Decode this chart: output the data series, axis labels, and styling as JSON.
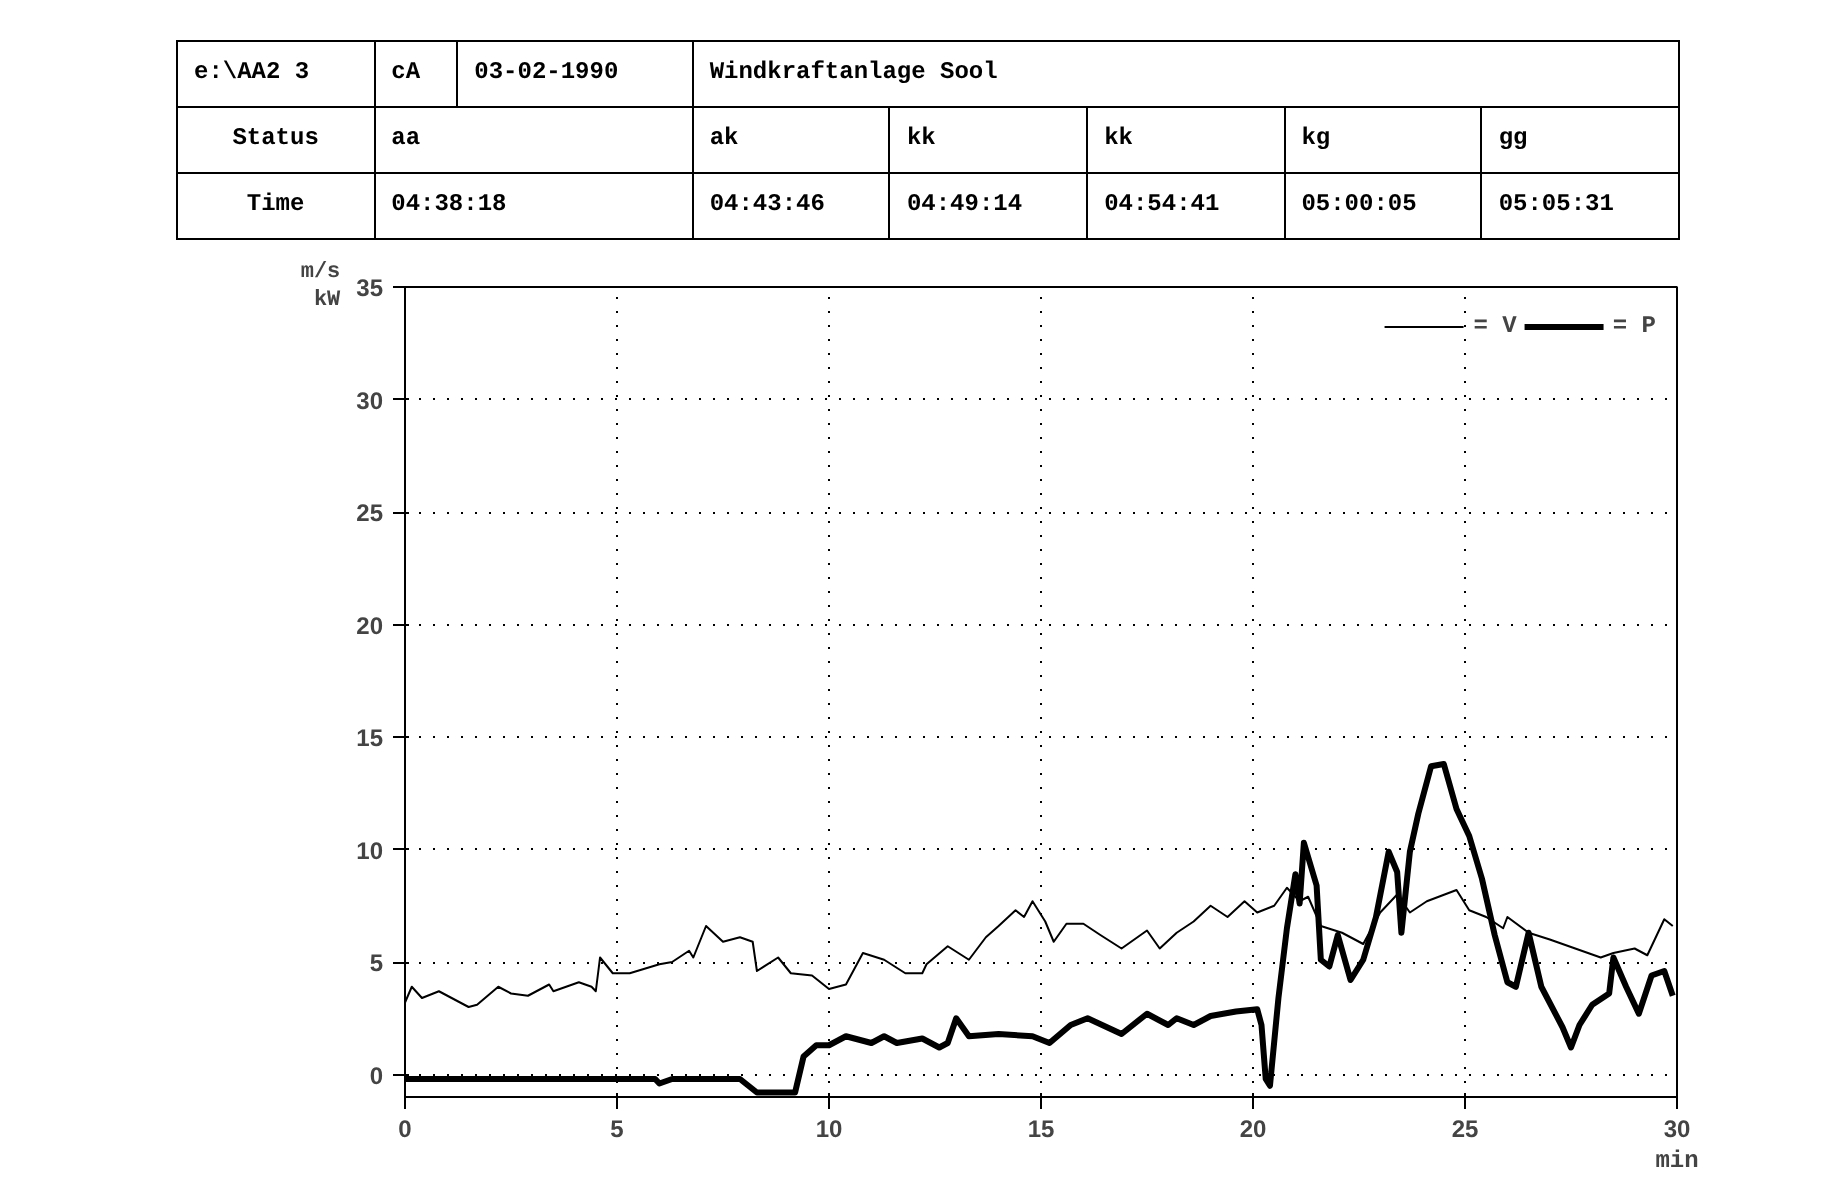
{
  "chart_data": {
    "type": "line",
    "title": "Windkraftanlage Sool",
    "xlabel": "min",
    "ylabel": "m/s\nkW",
    "annotations": [
      "e:\\AA2 3",
      "cA",
      "03-02-1990",
      "Status",
      "aa",
      "ak",
      "kk",
      "kk",
      "kg",
      "gg",
      "Time",
      "04:38:18",
      "04:43:46",
      "04:49:14",
      "04:54:41",
      "05:00:05",
      "05:05:31"
    ],
    "xlim": [
      0,
      30
    ],
    "ylim": [
      -1,
      35
    ],
    "xticks": [
      0,
      5,
      10,
      15,
      20,
      25,
      30
    ],
    "yticks": [
      0,
      5,
      10,
      15,
      20,
      25,
      30,
      35
    ],
    "grid": true,
    "legend": "top right",
    "line_style": "solid",
    "marker": "none",
    "series": [
      {
        "name": "= V",
        "color": "#000000",
        "x": [
          0,
          0.16,
          0.4,
          0.8,
          1.5,
          1.7,
          2.2,
          2.5,
          2.9,
          3.4,
          3.5,
          4.1,
          4.4,
          4.5,
          4.6,
          4.9,
          5.3,
          6.0,
          6.3,
          6.7,
          6.8,
          7.1,
          7.5,
          7.9,
          8.2,
          8.3,
          8.8,
          9.1,
          9.6,
          10.0,
          10.4,
          10.8,
          11.3,
          11.8,
          12.2,
          12.3,
          12.8,
          13.3,
          13.7,
          14.0,
          14.4,
          14.6,
          14.8,
          15.1,
          15.3,
          15.6,
          16.0,
          16.4,
          16.9,
          17.5,
          17.8,
          18.2,
          18.6,
          19.0,
          19.4,
          19.8,
          20.1,
          20.5,
          20.8,
          21.1,
          21.3,
          21.6,
          22.1,
          22.6,
          23.0,
          23.4,
          23.7,
          24.1,
          24.8,
          25.1,
          25.5,
          25.9,
          26.0,
          26.5,
          27.0,
          27.6,
          28.2,
          28.5,
          29.0,
          29.3,
          29.7,
          29.9
        ],
        "values": [
          3.2,
          3.9,
          3.4,
          3.7,
          3.0,
          3.1,
          3.9,
          3.6,
          3.5,
          4.0,
          3.7,
          4.1,
          3.9,
          3.7,
          5.2,
          4.5,
          4.5,
          4.9,
          5.0,
          5.5,
          5.2,
          6.6,
          5.9,
          6.1,
          5.9,
          4.6,
          5.2,
          4.5,
          4.4,
          3.8,
          4.0,
          5.4,
          5.1,
          4.5,
          4.5,
          4.9,
          5.7,
          5.1,
          6.1,
          6.6,
          7.3,
          7.0,
          7.7,
          6.8,
          5.9,
          6.7,
          6.7,
          6.2,
          5.6,
          6.4,
          5.6,
          6.3,
          6.8,
          7.5,
          7.0,
          7.7,
          7.2,
          7.5,
          8.3,
          7.7,
          7.9,
          6.6,
          6.3,
          5.8,
          7.2,
          8.0,
          7.2,
          7.7,
          8.2,
          7.3,
          7.0,
          6.5,
          7.0,
          6.3,
          6.0,
          5.6,
          5.2,
          5.4,
          5.6,
          5.3,
          6.9,
          6.6
        ]
      },
      {
        "name": "= P",
        "color": "#000000",
        "x": [
          0,
          5.9,
          6.0,
          6.3,
          7.9,
          8.3,
          9.2,
          9.4,
          9.7,
          10.0,
          10.4,
          10.6,
          11.0,
          11.3,
          11.6,
          12.2,
          12.6,
          12.8,
          13.0,
          13.3,
          14.0,
          14.8,
          15.2,
          15.7,
          16.1,
          16.9,
          17.5,
          18.0,
          18.2,
          18.6,
          19.0,
          19.6,
          20.1,
          20.2,
          20.3,
          20.4,
          20.6,
          20.8,
          21.0,
          21.1,
          21.2,
          21.5,
          21.6,
          21.8,
          22.0,
          22.3,
          22.6,
          22.9,
          23.2,
          23.4,
          23.5,
          23.7,
          23.9,
          24.2,
          24.5,
          24.8,
          25.1,
          25.4,
          25.7,
          26.0,
          26.2,
          26.5,
          26.8,
          27.3,
          27.5,
          27.7,
          28.0,
          28.4,
          28.5,
          28.8,
          29.1,
          29.4,
          29.7,
          29.9
        ],
        "values": [
          -0.2,
          -0.2,
          -0.4,
          -0.2,
          -0.2,
          -0.8,
          -0.8,
          0.8,
          1.3,
          1.3,
          1.7,
          1.6,
          1.4,
          1.7,
          1.4,
          1.6,
          1.2,
          1.4,
          2.5,
          1.7,
          1.8,
          1.7,
          1.4,
          2.2,
          2.5,
          1.8,
          2.7,
          2.2,
          2.5,
          2.2,
          2.6,
          2.8,
          2.9,
          2.2,
          -0.2,
          -0.5,
          3.4,
          6.5,
          8.9,
          7.6,
          10.3,
          8.4,
          5.1,
          4.8,
          6.2,
          4.2,
          5.1,
          7.0,
          9.9,
          9.0,
          6.3,
          9.9,
          11.6,
          13.7,
          13.8,
          11.8,
          10.6,
          8.7,
          6.2,
          4.1,
          3.9,
          6.3,
          3.9,
          2.1,
          1.2,
          2.2,
          3.1,
          3.6,
          5.2,
          3.9,
          2.7,
          4.4,
          4.6,
          3.5
        ]
      }
    ]
  }
}
